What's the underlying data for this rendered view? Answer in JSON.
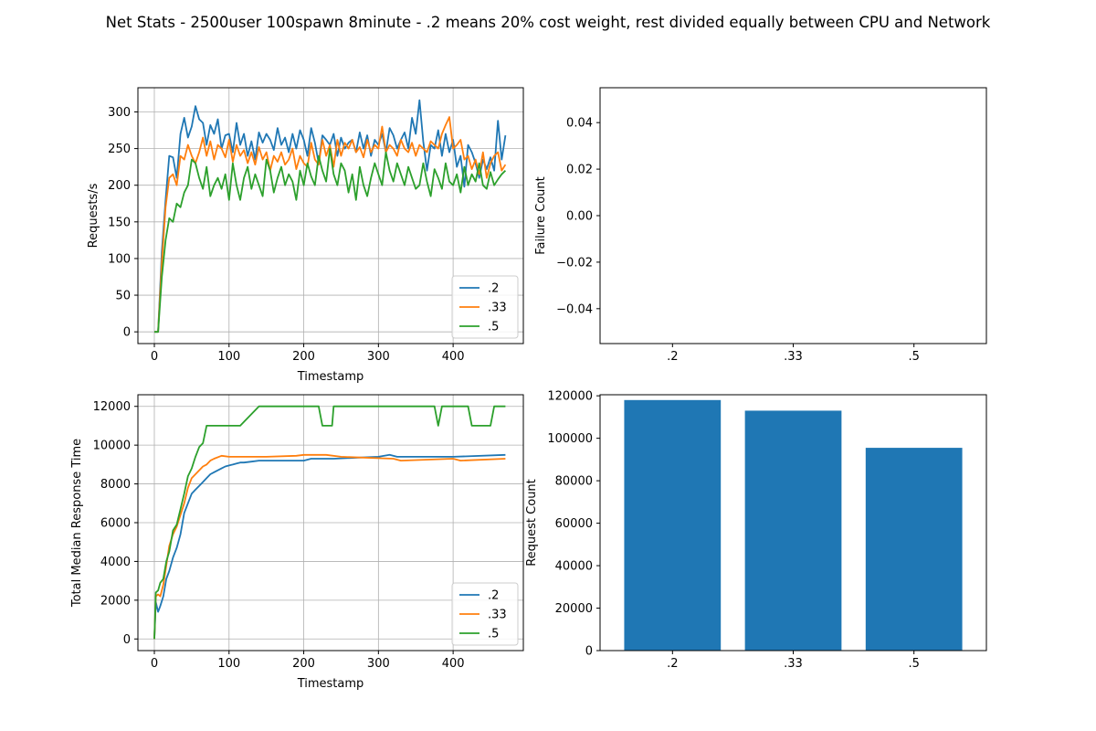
{
  "figure": {
    "title": "Net Stats - 2500user 100spawn 8minute - .2 means 20% cost weight, rest divided equally between CPU and Network"
  },
  "colors": {
    "s1": "#1f77b4",
    "s2": "#ff7f0e",
    "s3": "#2ca02c",
    "bar": "#1f77b4"
  },
  "chart_data": [
    {
      "id": "requests",
      "type": "line",
      "title": "",
      "xlabel": "Timestamp",
      "ylabel": "Requests/s",
      "xlim": [
        -22,
        494
      ],
      "ylim": [
        -16,
        333
      ],
      "xticks": [
        0,
        100,
        200,
        300,
        400
      ],
      "yticks": [
        0,
        50,
        100,
        150,
        200,
        250,
        300
      ],
      "grid": true,
      "legend": "lower-right",
      "series": [
        {
          "name": ".2",
          "x": [
            0,
            5,
            10,
            15,
            20,
            25,
            30,
            35,
            40,
            45,
            50,
            55,
            60,
            65,
            70,
            75,
            80,
            85,
            90,
            95,
            100,
            105,
            110,
            115,
            120,
            125,
            130,
            135,
            140,
            145,
            150,
            155,
            160,
            165,
            170,
            175,
            180,
            185,
            190,
            195,
            200,
            205,
            210,
            215,
            220,
            225,
            230,
            235,
            240,
            245,
            250,
            255,
            260,
            265,
            270,
            275,
            280,
            285,
            290,
            295,
            300,
            305,
            310,
            315,
            320,
            325,
            330,
            335,
            340,
            345,
            350,
            355,
            360,
            365,
            370,
            375,
            380,
            385,
            390,
            395,
            400,
            405,
            410,
            415,
            420,
            425,
            430,
            435,
            440,
            445,
            450,
            455,
            460,
            465,
            470
          ],
          "y": [
            0,
            0,
            110,
            180,
            240,
            238,
            210,
            270,
            292,
            265,
            280,
            308,
            290,
            285,
            255,
            282,
            270,
            290,
            250,
            268,
            270,
            245,
            285,
            255,
            270,
            240,
            260,
            235,
            272,
            258,
            270,
            262,
            248,
            278,
            255,
            265,
            245,
            270,
            250,
            275,
            262,
            240,
            278,
            258,
            230,
            268,
            262,
            255,
            270,
            240,
            265,
            250,
            258,
            262,
            245,
            272,
            250,
            268,
            240,
            262,
            255,
            270,
            245,
            278,
            268,
            250,
            262,
            272,
            250,
            292,
            270,
            316,
            260,
            220,
            255,
            250,
            275,
            240,
            270,
            245,
            262,
            225,
            240,
            198,
            255,
            245,
            230,
            210,
            235,
            222,
            238,
            220,
            288,
            235,
            268
          ]
        },
        {
          "name": ".33",
          "x": [
            0,
            5,
            10,
            15,
            20,
            25,
            30,
            35,
            40,
            45,
            50,
            55,
            60,
            65,
            70,
            75,
            80,
            85,
            90,
            95,
            100,
            105,
            110,
            115,
            120,
            125,
            130,
            135,
            140,
            145,
            150,
            155,
            160,
            165,
            170,
            175,
            180,
            185,
            190,
            195,
            200,
            205,
            210,
            215,
            220,
            225,
            230,
            235,
            240,
            245,
            250,
            255,
            260,
            265,
            270,
            275,
            280,
            285,
            290,
            295,
            300,
            305,
            310,
            315,
            320,
            325,
            330,
            335,
            340,
            345,
            350,
            355,
            360,
            365,
            370,
            375,
            380,
            385,
            390,
            395,
            400,
            405,
            410,
            415,
            420,
            425,
            430,
            435,
            440,
            445,
            450,
            455,
            460,
            465,
            470
          ],
          "y": [
            0,
            0,
            95,
            170,
            210,
            215,
            200,
            240,
            235,
            255,
            240,
            230,
            245,
            265,
            240,
            260,
            235,
            255,
            250,
            238,
            262,
            232,
            255,
            240,
            248,
            230,
            245,
            228,
            252,
            235,
            245,
            220,
            240,
            232,
            245,
            228,
            235,
            250,
            222,
            240,
            230,
            225,
            258,
            235,
            228,
            262,
            240,
            255,
            225,
            262,
            240,
            258,
            250,
            262,
            245,
            252,
            238,
            262,
            245,
            255,
            250,
            280,
            245,
            255,
            250,
            240,
            262,
            250,
            245,
            258,
            240,
            255,
            250,
            245,
            260,
            255,
            250,
            270,
            282,
            293,
            250,
            255,
            262,
            235,
            240,
            222,
            235,
            215,
            245,
            210,
            230,
            240,
            245,
            220,
            228
          ]
        },
        {
          "name": ".5",
          "x": [
            0,
            5,
            10,
            15,
            20,
            25,
            30,
            35,
            40,
            45,
            50,
            55,
            60,
            65,
            70,
            75,
            80,
            85,
            90,
            95,
            100,
            105,
            110,
            115,
            120,
            125,
            130,
            135,
            140,
            145,
            150,
            155,
            160,
            165,
            170,
            175,
            180,
            185,
            190,
            195,
            200,
            205,
            210,
            215,
            220,
            225,
            230,
            235,
            240,
            245,
            250,
            255,
            260,
            265,
            270,
            275,
            280,
            285,
            290,
            295,
            300,
            305,
            310,
            315,
            320,
            325,
            330,
            335,
            340,
            345,
            350,
            355,
            360,
            365,
            370,
            375,
            380,
            385,
            390,
            395,
            400,
            405,
            410,
            415,
            420,
            425,
            430,
            435,
            440,
            445,
            450,
            455,
            460,
            465,
            470
          ],
          "y": [
            0,
            0,
            75,
            125,
            155,
            150,
            175,
            170,
            190,
            200,
            235,
            230,
            210,
            195,
            225,
            185,
            200,
            210,
            195,
            215,
            180,
            230,
            200,
            180,
            210,
            225,
            195,
            215,
            200,
            185,
            235,
            220,
            190,
            210,
            225,
            200,
            215,
            205,
            180,
            220,
            200,
            230,
            212,
            200,
            240,
            220,
            205,
            250,
            215,
            200,
            230,
            220,
            190,
            215,
            180,
            225,
            200,
            185,
            210,
            230,
            215,
            200,
            245,
            220,
            205,
            230,
            215,
            200,
            225,
            210,
            195,
            200,
            230,
            205,
            185,
            222,
            210,
            195,
            230,
            205,
            200,
            215,
            190,
            225,
            200,
            215,
            205,
            230,
            200,
            195,
            218,
            200,
            208,
            215,
            220
          ]
        }
      ]
    },
    {
      "id": "failures",
      "type": "bar",
      "title": "",
      "xlabel": "",
      "ylabel": "Failure Count",
      "categories": [
        ".2",
        ".33",
        ".5"
      ],
      "values": [
        0,
        0,
        0
      ],
      "ylim": [
        -0.055,
        0.055
      ],
      "yticks": [
        -0.04,
        -0.02,
        0.0,
        0.02,
        0.04
      ],
      "ytick_labels": [
        "−0.04",
        "−0.02",
        "0.00",
        "0.02",
        "0.04"
      ],
      "grid": false
    },
    {
      "id": "response",
      "type": "line",
      "title": "",
      "xlabel": "Timestamp",
      "ylabel": "Total Median Response Time",
      "xlim": [
        -22,
        494
      ],
      "ylim": [
        -600,
        12600
      ],
      "xticks": [
        0,
        100,
        200,
        300,
        400
      ],
      "yticks": [
        0,
        2000,
        4000,
        6000,
        8000,
        10000,
        12000
      ],
      "grid": true,
      "legend": "lower-right",
      "series": [
        {
          "name": ".2",
          "x": [
            0,
            2,
            5,
            8,
            12,
            16,
            20,
            25,
            30,
            35,
            40,
            45,
            50,
            55,
            60,
            65,
            70,
            75,
            80,
            85,
            90,
            95,
            100,
            105,
            110,
            115,
            120,
            130,
            140,
            160,
            200,
            210,
            240,
            300,
            315,
            325,
            400,
            470
          ],
          "y": [
            0,
            1900,
            1400,
            1700,
            2200,
            3100,
            3500,
            4200,
            4700,
            5400,
            6500,
            7000,
            7500,
            7700,
            7900,
            8100,
            8300,
            8500,
            8600,
            8700,
            8800,
            8900,
            8950,
            9000,
            9050,
            9100,
            9100,
            9150,
            9200,
            9200,
            9200,
            9300,
            9300,
            9400,
            9500,
            9400,
            9400,
            9500
          ]
        },
        {
          "name": ".33",
          "x": [
            0,
            2,
            5,
            8,
            12,
            16,
            20,
            25,
            30,
            35,
            40,
            45,
            50,
            55,
            60,
            65,
            70,
            75,
            80,
            90,
            100,
            120,
            150,
            190,
            200,
            230,
            250,
            320,
            330,
            400,
            410,
            470
          ],
          "y": [
            0,
            2200,
            2300,
            2200,
            2800,
            3800,
            4800,
            5400,
            5800,
            6400,
            7000,
            7800,
            8300,
            8500,
            8700,
            8900,
            9000,
            9200,
            9300,
            9450,
            9400,
            9400,
            9400,
            9450,
            9500,
            9500,
            9400,
            9300,
            9200,
            9300,
            9200,
            9300
          ]
        },
        {
          "name": ".5",
          "x": [
            0,
            2,
            5,
            8,
            12,
            16,
            20,
            25,
            30,
            35,
            40,
            45,
            50,
            55,
            60,
            65,
            70,
            110,
            115,
            140,
            180,
            220,
            225,
            238,
            240,
            270,
            375,
            380,
            385,
            420,
            425,
            450,
            455,
            470
          ],
          "y": [
            0,
            2400,
            2500,
            2900,
            3100,
            4000,
            4500,
            5600,
            5900,
            6700,
            7500,
            8400,
            8800,
            9400,
            9900,
            10100,
            11000,
            11000,
            11000,
            12000,
            12000,
            12000,
            11000,
            11000,
            12000,
            12000,
            12000,
            11000,
            12000,
            12000,
            11000,
            11000,
            12000,
            12000
          ]
        }
      ]
    },
    {
      "id": "request-count",
      "type": "bar",
      "title": "",
      "xlabel": "",
      "ylabel": "Request Count",
      "categories": [
        ".2",
        ".33",
        ".5"
      ],
      "values": [
        118000,
        113000,
        95500
      ],
      "ylim": [
        0,
        120500
      ],
      "yticks": [
        0,
        20000,
        40000,
        60000,
        80000,
        100000,
        120000
      ],
      "grid": false
    }
  ]
}
